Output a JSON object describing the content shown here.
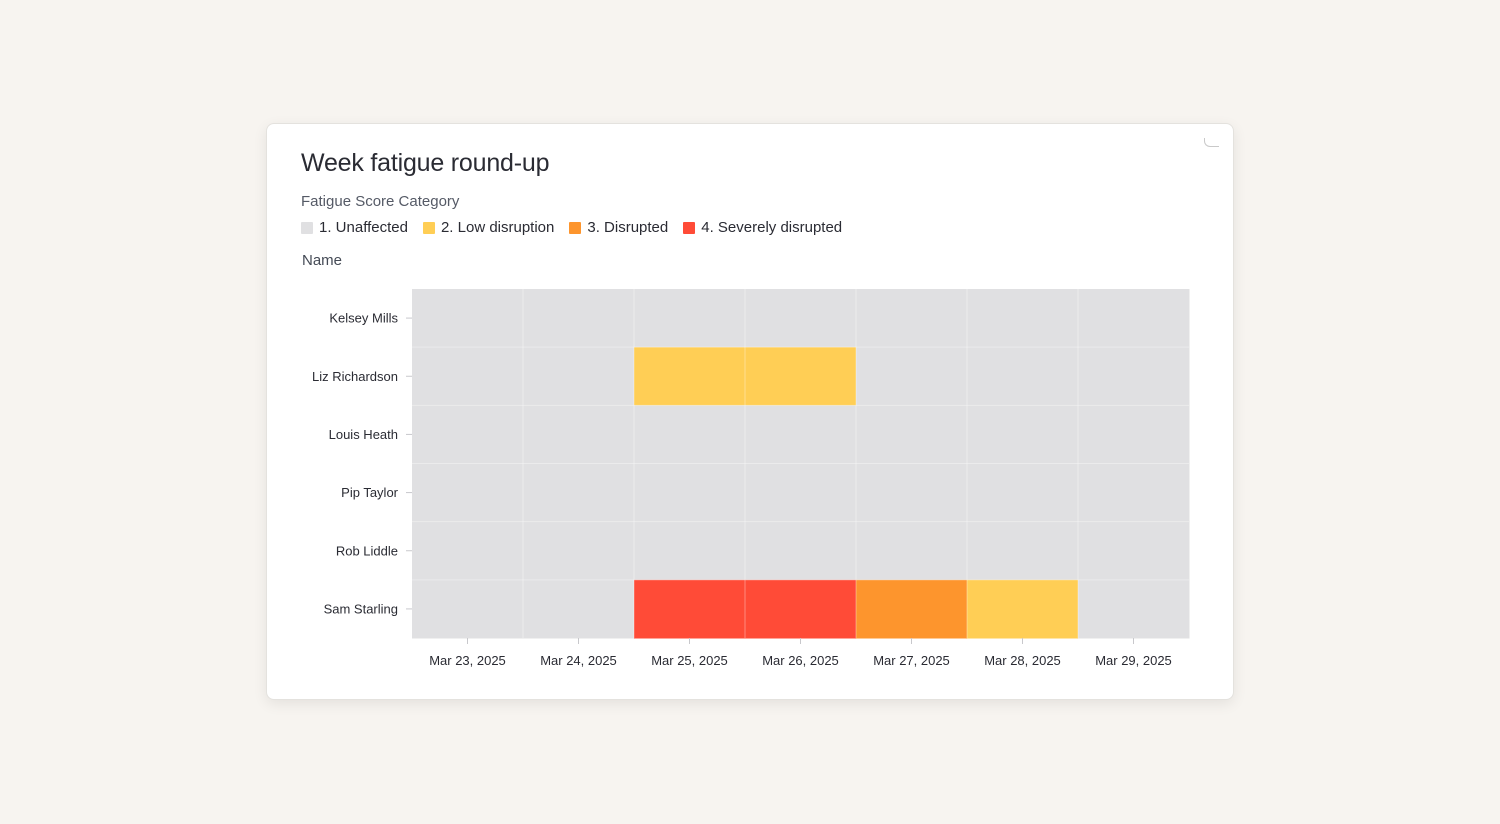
{
  "card": {
    "title": "Week fatigue round-up",
    "legend_title": "Fatigue Score Category",
    "y_axis_label": "Name"
  },
  "legend": [
    {
      "label": "1. Unaffected",
      "color": "#e0e0e2"
    },
    {
      "label": "2. Low disruption",
      "color": "#ffce55"
    },
    {
      "label": "3. Disrupted",
      "color": "#fd952d"
    },
    {
      "label": "4. Severely disrupted",
      "color": "#ff4b37"
    }
  ],
  "chart_data": {
    "type": "heatmap",
    "title": "Week fatigue round-up",
    "legend_title": "Fatigue Score Category",
    "ylabel": "Name",
    "xlabel": "",
    "x": [
      "Mar 23, 2025",
      "Mar 24, 2025",
      "Mar 25, 2025",
      "Mar 26, 2025",
      "Mar 27, 2025",
      "Mar 28, 2025",
      "Mar 29, 2025"
    ],
    "y": [
      "Kelsey Mills",
      "Liz Richardson",
      "Louis Heath",
      "Pip Taylor",
      "Rob Liddle",
      "Sam Starling"
    ],
    "categories": [
      "1. Unaffected",
      "2. Low disruption",
      "3. Disrupted",
      "4. Severely disrupted"
    ],
    "colors": [
      "#e0e0e2",
      "#ffce55",
      "#fd952d",
      "#ff4b37"
    ],
    "values": [
      [
        1,
        1,
        1,
        1,
        1,
        1,
        1
      ],
      [
        1,
        1,
        2,
        2,
        1,
        1,
        1
      ],
      [
        1,
        1,
        1,
        1,
        1,
        1,
        1
      ],
      [
        1,
        1,
        1,
        1,
        1,
        1,
        1
      ],
      [
        1,
        1,
        1,
        1,
        1,
        1,
        1
      ],
      [
        1,
        1,
        4,
        4,
        3,
        2,
        1
      ]
    ],
    "legend_position": "top-left",
    "grid": true
  }
}
